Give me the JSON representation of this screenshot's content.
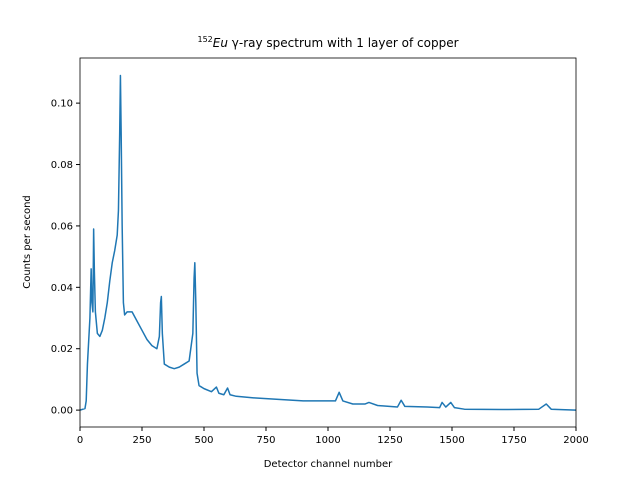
{
  "chart_data": {
    "type": "line",
    "title": [
      "152",
      "Eu",
      " γ-ray spectrum with 1 layer of copper"
    ],
    "xlabel": "Detector channel number",
    "ylabel": "Counts per second",
    "xlim": [
      0,
      2000
    ],
    "ylim": [
      -0.0055,
      0.1147
    ],
    "xticks": [
      0,
      250,
      500,
      750,
      1000,
      1250,
      1500,
      1750,
      2000
    ],
    "yticks": [
      {
        "value": 0,
        "label": "0.00"
      },
      0.02,
      0.04,
      0.06,
      0.08,
      {
        "value": 0.1,
        "label": "0.10"
      }
    ],
    "x": [
      0,
      20,
      25,
      30,
      40,
      45,
      48,
      52,
      55,
      58,
      62,
      70,
      80,
      90,
      100,
      110,
      120,
      130,
      140,
      150,
      155,
      160,
      163,
      166,
      170,
      175,
      180,
      190,
      200,
      210,
      230,
      250,
      270,
      290,
      310,
      320,
      325,
      328,
      332,
      340,
      360,
      380,
      400,
      420,
      440,
      455,
      460,
      463,
      467,
      472,
      480,
      500,
      530,
      550,
      560,
      580,
      595,
      605,
      630,
      700,
      800,
      900,
      1000,
      1030,
      1045,
      1060,
      1100,
      1150,
      1165,
      1200,
      1280,
      1295,
      1310,
      1400,
      1450,
      1460,
      1475,
      1495,
      1510,
      1550,
      1700,
      1850,
      1880,
      1900,
      2000
    ],
    "series": [
      {
        "color": "#1f77b4",
        "values": [
          0,
          0.0005,
          0.003,
          0.015,
          0.03,
          0.046,
          0.035,
          0.032,
          0.059,
          0.045,
          0.032,
          0.025,
          0.024,
          0.026,
          0.03,
          0.035,
          0.042,
          0.048,
          0.052,
          0.057,
          0.065,
          0.09,
          0.109,
          0.09,
          0.06,
          0.035,
          0.031,
          0.032,
          0.032,
          0.032,
          0.029,
          0.026,
          0.023,
          0.021,
          0.02,
          0.024,
          0.035,
          0.037,
          0.025,
          0.015,
          0.014,
          0.0135,
          0.014,
          0.015,
          0.016,
          0.025,
          0.043,
          0.048,
          0.035,
          0.012,
          0.008,
          0.007,
          0.006,
          0.0075,
          0.0055,
          0.005,
          0.0072,
          0.005,
          0.0045,
          0.004,
          0.0035,
          0.003,
          0.003,
          0.003,
          0.0058,
          0.003,
          0.002,
          0.002,
          0.0025,
          0.0015,
          0.001,
          0.0032,
          0.0012,
          0.001,
          0.0008,
          0.0025,
          0.001,
          0.0025,
          0.0008,
          0.0003,
          0.0002,
          0.0003,
          0.002,
          0.0003,
          0
        ]
      }
    ]
  }
}
